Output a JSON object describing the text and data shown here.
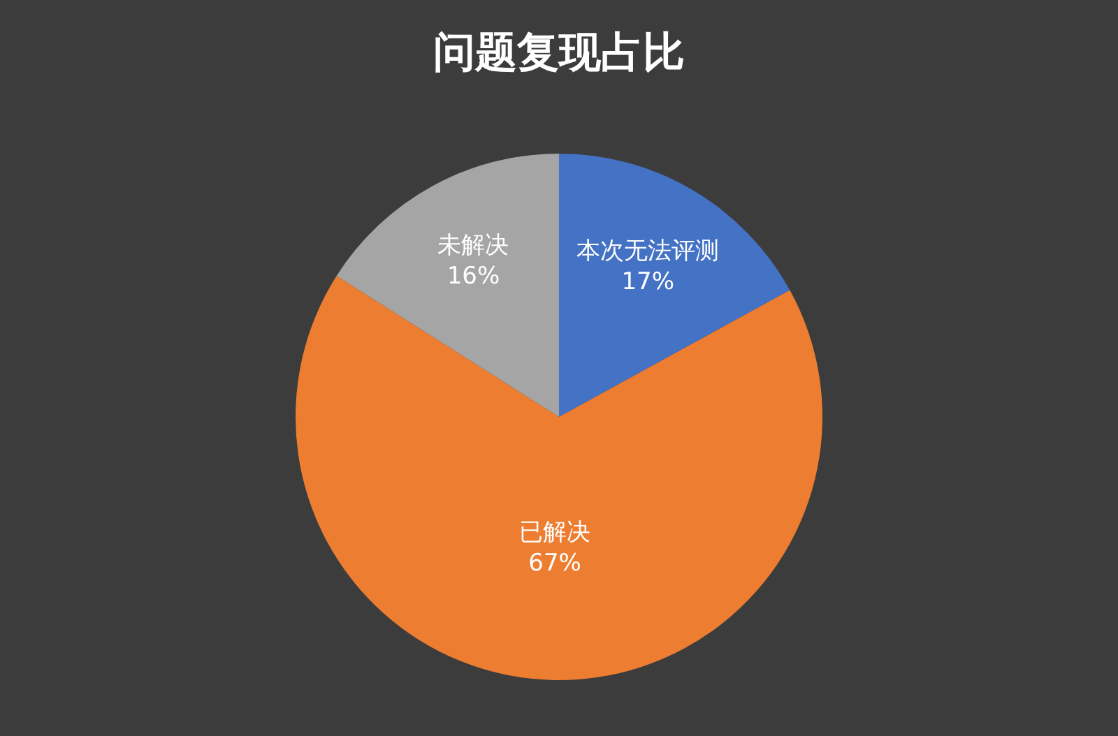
{
  "chart_data": {
    "type": "pie",
    "title": "问题复现占比",
    "categories": [
      "本次无法评测",
      "已解决",
      "未解决"
    ],
    "values": [
      17,
      67,
      16
    ],
    "value_labels": [
      "17%",
      "67%",
      "16%"
    ],
    "colors": [
      "#4472c4",
      "#ed7d31",
      "#a5a5a5"
    ],
    "legend": false
  }
}
